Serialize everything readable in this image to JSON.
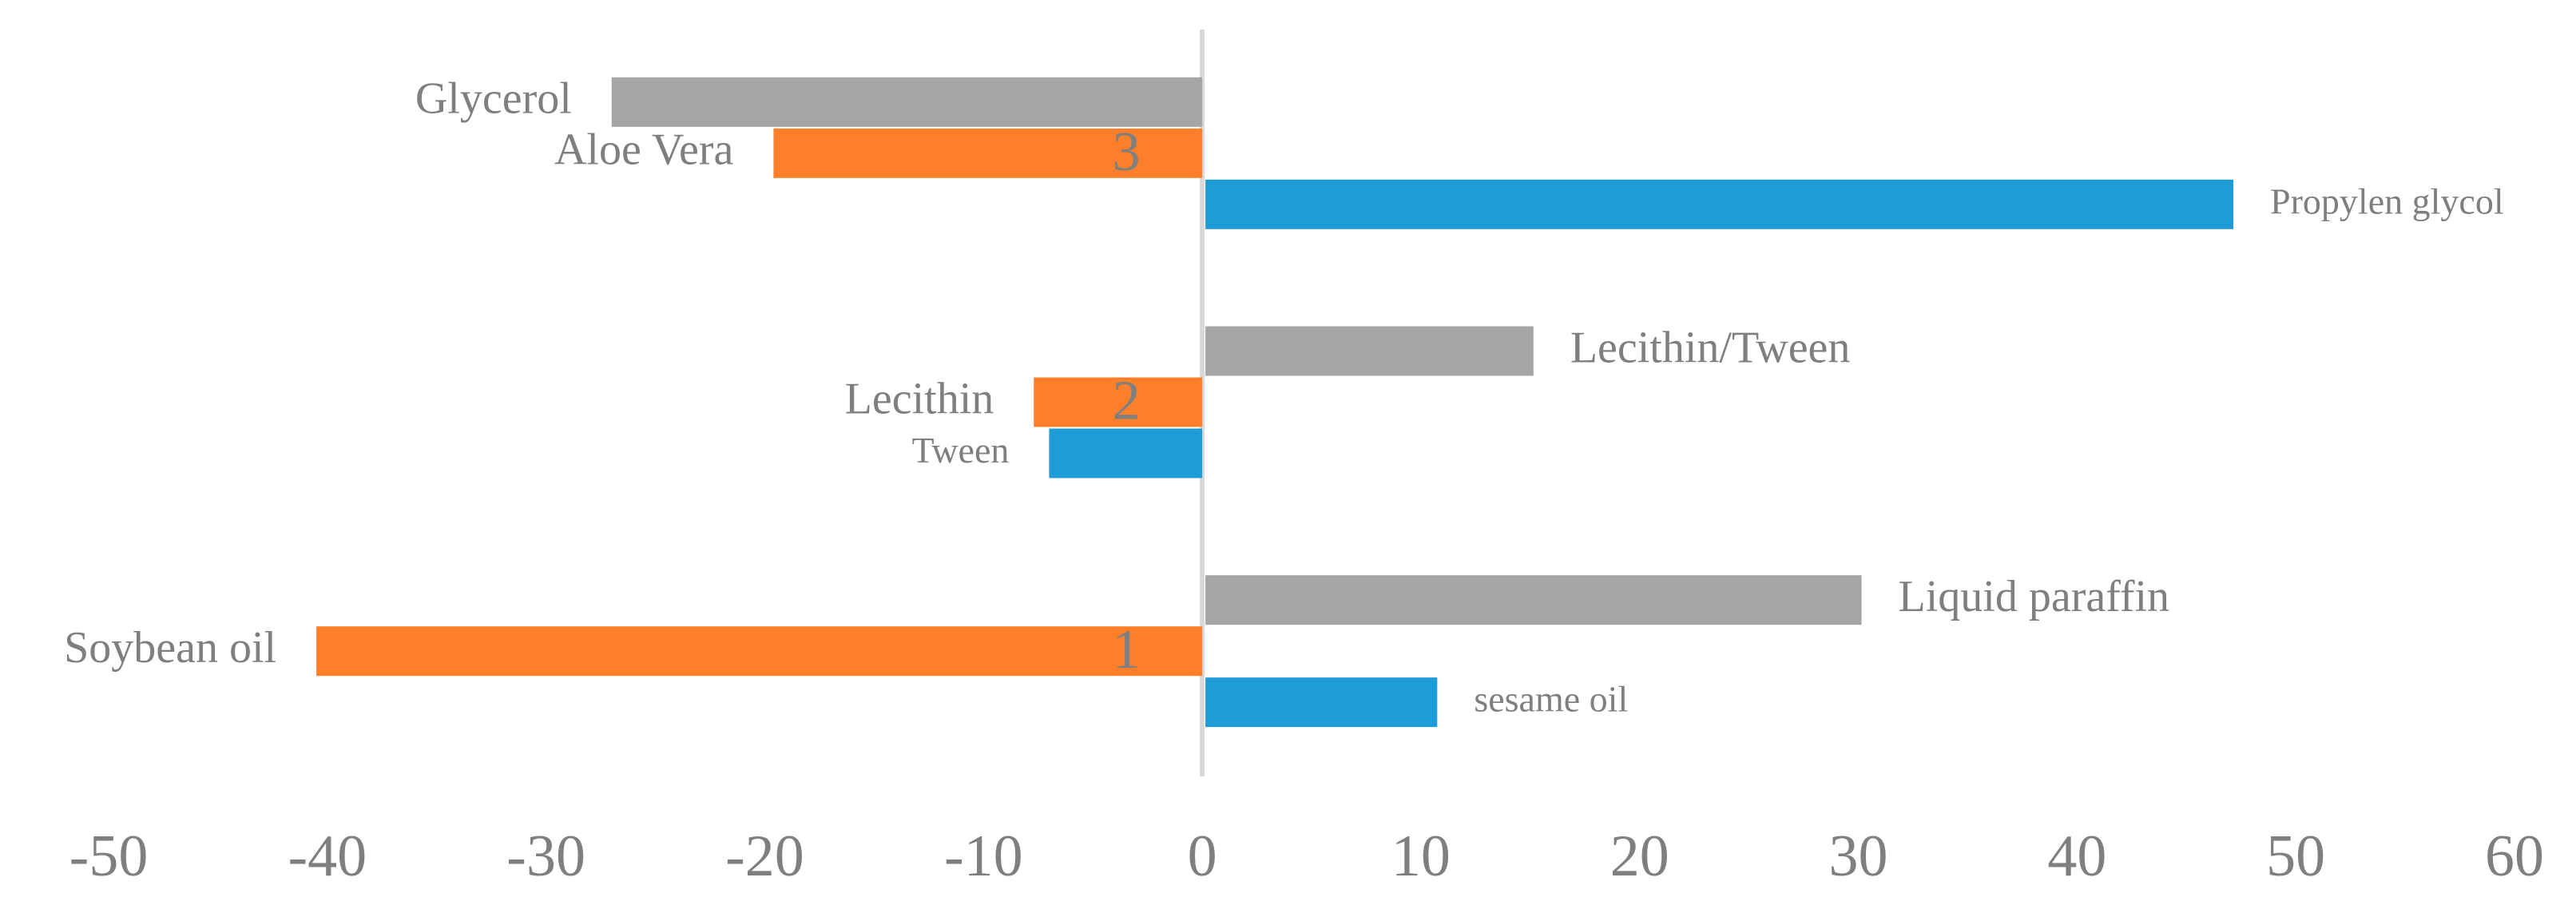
{
  "chart_data": {
    "type": "hbar",
    "categories": [
      "1",
      "2",
      "3"
    ],
    "series": [
      {
        "color": "#a5a5a5",
        "values": [
          30,
          15,
          -27
        ],
        "labels": [
          "Liquid paraffin",
          "Lecithin/Tween",
          "Glycerol"
        ]
      },
      {
        "color": "#fd7f2a",
        "values": [
          -40.5,
          -7.7,
          -19.6
        ],
        "labels": [
          "Soybean oil",
          "Lecithin",
          "Aloe Vera"
        ]
      },
      {
        "color": "#1e9cd7",
        "values": [
          10.6,
          -7,
          47
        ],
        "labels": [
          "sesame oil",
          "Tween",
          "Propylen glycol"
        ]
      }
    ],
    "xlim": [
      -50,
      60
    ],
    "xticks": [
      -50,
      -40,
      -30,
      -20,
      -10,
      0,
      10,
      20,
      30,
      40,
      50,
      60
    ]
  }
}
